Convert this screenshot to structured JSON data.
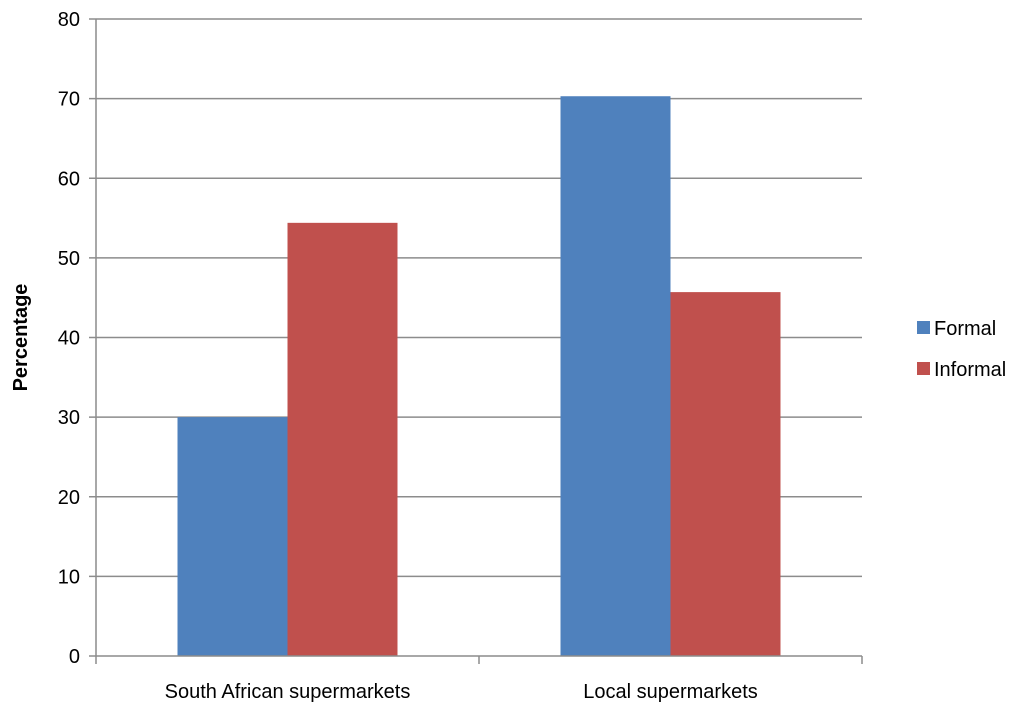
{
  "chart_data": {
    "type": "bar",
    "title": "",
    "xlabel": "",
    "ylabel": "Percentage",
    "categories": [
      "South African supermarkets",
      "Local supermarkets"
    ],
    "series": [
      {
        "name": "Formal",
        "values": [
          30,
          70.3
        ],
        "color": "#4f81bd"
      },
      {
        "name": "Informal",
        "values": [
          54.4,
          45.7
        ],
        "color": "#c0504d"
      }
    ],
    "ylim": [
      0,
      80
    ],
    "yticks": [
      0,
      10,
      20,
      30,
      40,
      50,
      60,
      70,
      80
    ],
    "grid": true,
    "legend_position": "right"
  }
}
